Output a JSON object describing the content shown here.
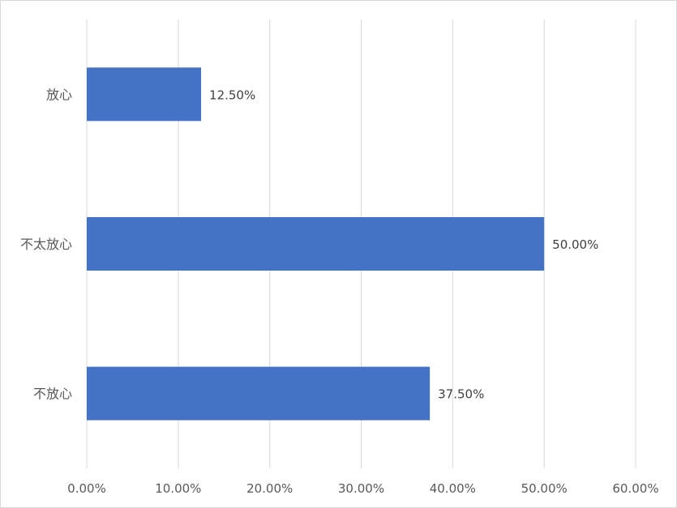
{
  "chart_data": {
    "type": "bar",
    "orientation": "horizontal",
    "categories": [
      "放心",
      "不太放心",
      "不放心"
    ],
    "values": [
      12.5,
      50.0,
      37.5
    ],
    "value_labels": [
      "12.50%",
      "50.00%",
      "37.50%"
    ],
    "xlim": [
      0,
      60
    ],
    "x_ticks": [
      0,
      10,
      20,
      30,
      40,
      50,
      60
    ],
    "x_tick_labels": [
      "0.00%",
      "10.00%",
      "20.00%",
      "30.00%",
      "40.00%",
      "50.00%",
      "60.00%"
    ],
    "grid": true,
    "legend": "none",
    "bar_color": "#4472C4",
    "grid_color": "#d9d9d9"
  }
}
